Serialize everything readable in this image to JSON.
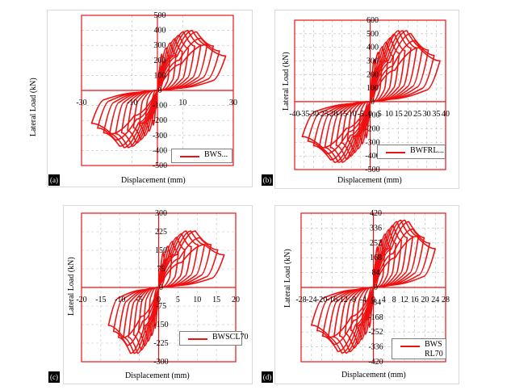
{
  "colors": {
    "curve": "#ee1111",
    "axis": "#ee1111",
    "grid": "#bfbfbf"
  },
  "chart_data": [
    {
      "type": "line",
      "label": "(a)",
      "xlabel": "Displacement (mm)",
      "ylabel": "Lateral Load (kN)",
      "xlim": [
        -30,
        30
      ],
      "ylim": [
        -500,
        500
      ],
      "xticks": [
        "-30",
        "-10",
        "10",
        "30"
      ],
      "yticks": [
        "500",
        "400",
        "300",
        "200",
        "100",
        "0",
        "-100",
        "-200",
        "-300",
        "-400",
        "-500"
      ],
      "legend": "BWS...",
      "grid": true,
      "series_shape": {
        "x_max": 27,
        "x_min": -26,
        "y_max": 420,
        "y_min": -400,
        "cycles": 11
      }
    },
    {
      "type": "line",
      "label": "(b)",
      "xlabel": "Displacement (mm)",
      "ylabel": "Lateral Load (kN)",
      "xlim": [
        -40,
        40
      ],
      "ylim": [
        -500,
        600
      ],
      "xticks": [
        "-40",
        "-35",
        "-30",
        "-25",
        "-20",
        "-15",
        "-10",
        "-5",
        "0",
        "5",
        "10",
        "15",
        "20",
        "25",
        "30",
        "35",
        "40"
      ],
      "yticks": [
        "600",
        "500",
        "400",
        "300",
        "200",
        "100",
        "0",
        "-100",
        "-200",
        "-300",
        "-400",
        "-500"
      ],
      "legend": "BWFRL...",
      "grid": true,
      "series_shape": {
        "x_max": 37,
        "x_min": -36,
        "y_max": 550,
        "y_min": -470,
        "cycles": 12
      }
    },
    {
      "type": "line",
      "label": "(c)",
      "xlabel": "Displacement (mm)",
      "ylabel": "Lateral Load (kN)",
      "xlim": [
        -20,
        20
      ],
      "ylim": [
        -300,
        300
      ],
      "xticks": [
        "-20",
        "-15",
        "-10",
        "-5",
        "0",
        "5",
        "10",
        "15",
        "20"
      ],
      "yticks": [
        "300",
        "225",
        "150",
        "75",
        "0",
        "-75",
        "-150",
        "-225",
        "-300"
      ],
      "legend": "BWSCL70",
      "grid": true,
      "series_shape": {
        "x_max": 17,
        "x_min": -13,
        "y_max": 240,
        "y_min": -280,
        "cycles": 10
      }
    },
    {
      "type": "line",
      "label": "(d)",
      "xlabel": "Displacement (mm)",
      "ylabel": "Lateral Load (kN)",
      "xlim": [
        -28,
        28
      ],
      "ylim": [
        -420,
        420
      ],
      "xticks": [
        "-28",
        "-24",
        "-20",
        "-16",
        "-12",
        "-8",
        "-4",
        "0",
        "4",
        "8",
        "12",
        "16",
        "20",
        "24",
        "28"
      ],
      "yticks": [
        "420",
        "336",
        "252",
        "168",
        "84",
        "0",
        "-84",
        "-168",
        "-252",
        "-336",
        "-420"
      ],
      "legend": "BWS\nRL70",
      "grid": true,
      "series_shape": {
        "x_max": 24,
        "x_min": -24,
        "y_max": 400,
        "y_min": -390,
        "cycles": 11
      }
    }
  ]
}
